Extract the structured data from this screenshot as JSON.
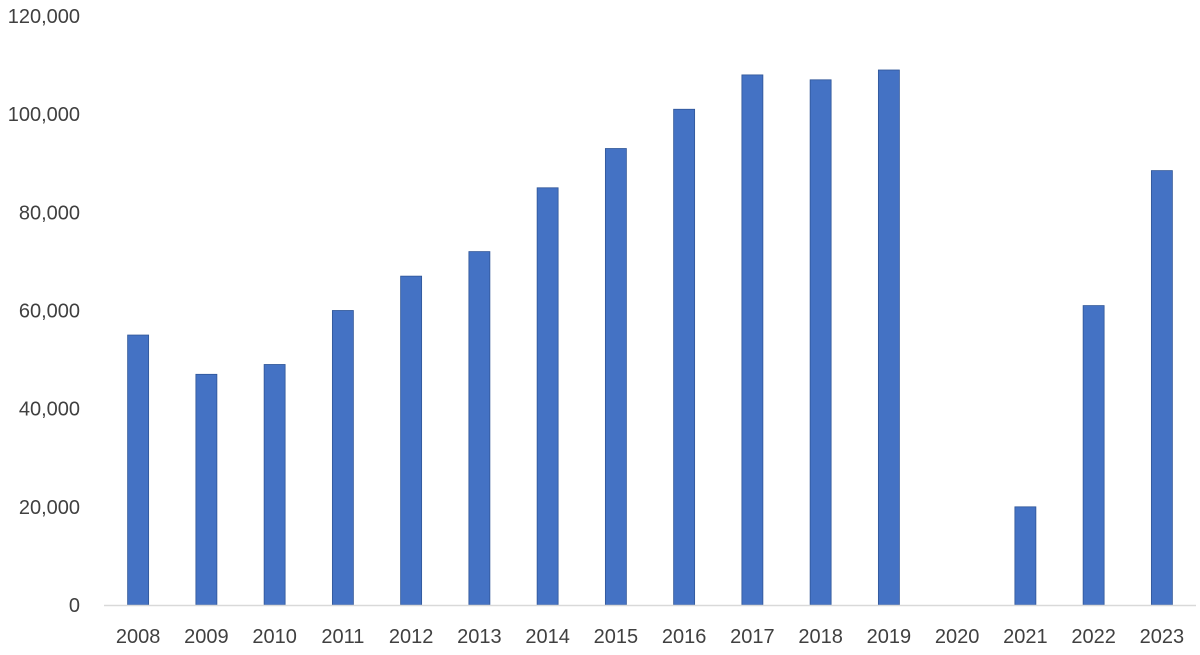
{
  "chart_data": {
    "type": "bar",
    "title": "",
    "xlabel": "",
    "ylabel": "",
    "categories": [
      "2008",
      "2009",
      "2010",
      "2011",
      "2012",
      "2013",
      "2014",
      "2015",
      "2016",
      "2017",
      "2018",
      "2019",
      "2020",
      "2021",
      "2022",
      "2023"
    ],
    "series": [
      {
        "values": [
          55000,
          47000,
          49000,
          60000,
          67000,
          72000,
          85000,
          93000,
          101000,
          108000,
          107000,
          109000,
          0,
          20000,
          61000,
          88500
        ]
      }
    ],
    "ylim": [
      0,
      120000
    ],
    "yticks": [
      0,
      20000,
      40000,
      60000,
      80000,
      100000,
      120000
    ],
    "ytick_labels": [
      "0",
      "20,000",
      "40,000",
      "60,000",
      "80,000",
      "100,000",
      "120,000"
    ],
    "grid": false,
    "legend": "none",
    "colors": {
      "bar": "#4472C4",
      "bar_edge": "#2F5597",
      "axis": "#D9D9D9",
      "text": "#404040"
    }
  }
}
